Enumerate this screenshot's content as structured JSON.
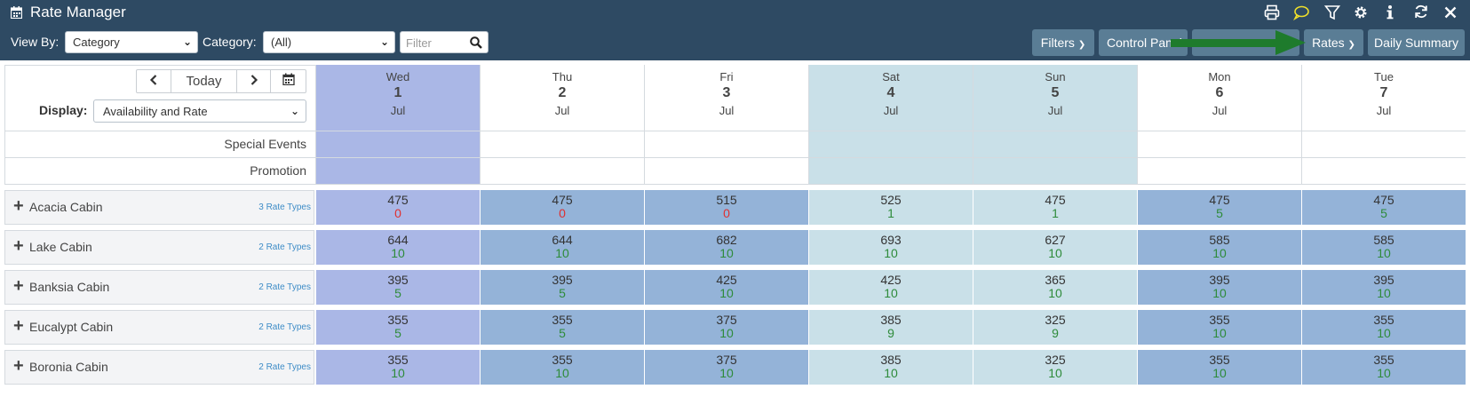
{
  "app": {
    "title": "Rate Manager",
    "title_icon": "calendar-icon"
  },
  "top_icons": [
    "print-icon",
    "comment-icon",
    "filter-icon",
    "gear-icon",
    "info-icon",
    "refresh-icon",
    "close-icon"
  ],
  "toolbar": {
    "view_by_label": "View By:",
    "view_by_value": "Category",
    "category_label": "Category:",
    "category_value": "(All)",
    "filter_placeholder": "Filter",
    "filters_label": "Filters",
    "control_panel_label": "Control Panel",
    "rates_label": "Rates",
    "daily_summary_label": "Daily Summary"
  },
  "nav": {
    "today_label": "Today"
  },
  "display": {
    "label": "Display:",
    "value": "Availability and Rate"
  },
  "colors": {
    "header_bg": "#2e4a63",
    "button_bg": "#5a7d95",
    "today_col": "#aab7e6",
    "weekday_col": "#94b3d8",
    "weekend_col": "#c9e0e8",
    "avail_zero": "#e03030",
    "avail_pos": "#2e8b3a",
    "arrow": "#1e7b2c"
  },
  "days": [
    {
      "dow": "Wed",
      "num": "1",
      "mon": "Jul",
      "type": "today"
    },
    {
      "dow": "Thu",
      "num": "2",
      "mon": "Jul",
      "type": "weekday"
    },
    {
      "dow": "Fri",
      "num": "3",
      "mon": "Jul",
      "type": "weekday"
    },
    {
      "dow": "Sat",
      "num": "4",
      "mon": "Jul",
      "type": "weekend"
    },
    {
      "dow": "Sun",
      "num": "5",
      "mon": "Jul",
      "type": "weekend"
    },
    {
      "dow": "Mon",
      "num": "6",
      "mon": "Jul",
      "type": "weekday"
    },
    {
      "dow": "Tue",
      "num": "7",
      "mon": "Jul",
      "type": "weekday"
    }
  ],
  "event_rows": [
    {
      "label": "Special Events"
    },
    {
      "label": "Promotion"
    }
  ],
  "categories": [
    {
      "name": "Acacia Cabin",
      "rate_types": "3 Rate Types",
      "rates": [
        "475",
        "475",
        "515",
        "525",
        "475",
        "475",
        "475"
      ],
      "avail": [
        "0",
        "0",
        "0",
        "1",
        "1",
        "5",
        "5"
      ]
    },
    {
      "name": "Lake Cabin",
      "rate_types": "2 Rate Types",
      "rates": [
        "644",
        "644",
        "682",
        "693",
        "627",
        "585",
        "585"
      ],
      "avail": [
        "10",
        "10",
        "10",
        "10",
        "10",
        "10",
        "10"
      ]
    },
    {
      "name": "Banksia Cabin",
      "rate_types": "2 Rate Types",
      "rates": [
        "395",
        "395",
        "425",
        "425",
        "365",
        "395",
        "395"
      ],
      "avail": [
        "5",
        "5",
        "10",
        "10",
        "10",
        "10",
        "10"
      ]
    },
    {
      "name": "Eucalypt Cabin",
      "rate_types": "2 Rate Types",
      "rates": [
        "355",
        "355",
        "375",
        "385",
        "325",
        "355",
        "355"
      ],
      "avail": [
        "5",
        "5",
        "10",
        "9",
        "9",
        "10",
        "10"
      ]
    },
    {
      "name": "Boronia Cabin",
      "rate_types": "2 Rate Types",
      "rates": [
        "355",
        "355",
        "375",
        "385",
        "325",
        "355",
        "355"
      ],
      "avail": [
        "10",
        "10",
        "10",
        "10",
        "10",
        "10",
        "10"
      ]
    }
  ]
}
